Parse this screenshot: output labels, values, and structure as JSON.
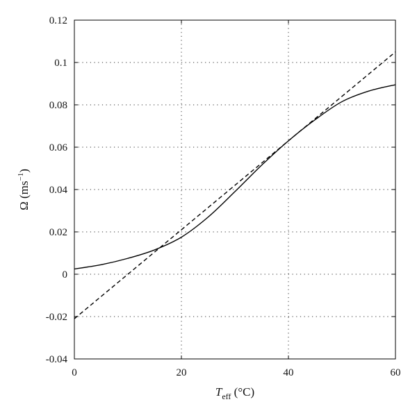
{
  "chart_data": {
    "type": "line",
    "title": "",
    "xlabel": {
      "main": "T",
      "sub": "eff",
      "unit": " (°C)"
    },
    "ylabel": {
      "main": "Ω (ms",
      "sup": "−1",
      "close": ")"
    },
    "xlim": [
      0,
      60
    ],
    "ylim": [
      -0.04,
      0.12
    ],
    "xticks": [
      0,
      20,
      40,
      60
    ],
    "xtick_labels": [
      "0",
      "20",
      "40",
      "60"
    ],
    "yticks": [
      -0.04,
      -0.02,
      0,
      0.02,
      0.04,
      0.06,
      0.08,
      0.1,
      0.12
    ],
    "ytick_labels": [
      "-0.04",
      "-0.02",
      "0",
      "0.02",
      "0.04",
      "0.06",
      "0.08",
      "0.1",
      "0.12"
    ],
    "grid": true,
    "series": [
      {
        "style": "solid",
        "color": "#000000",
        "x": [
          0,
          5,
          10,
          15,
          20,
          25,
          30,
          35,
          40,
          45,
          50,
          55,
          60
        ],
        "y": [
          0.0025,
          0.0045,
          0.0075,
          0.0115,
          0.0175,
          0.027,
          0.039,
          0.0515,
          0.063,
          0.073,
          0.0815,
          0.0865,
          0.0895
        ]
      },
      {
        "style": "dashed",
        "color": "#000000",
        "x": [
          0,
          60
        ],
        "y": [
          -0.021,
          0.105
        ]
      }
    ]
  }
}
